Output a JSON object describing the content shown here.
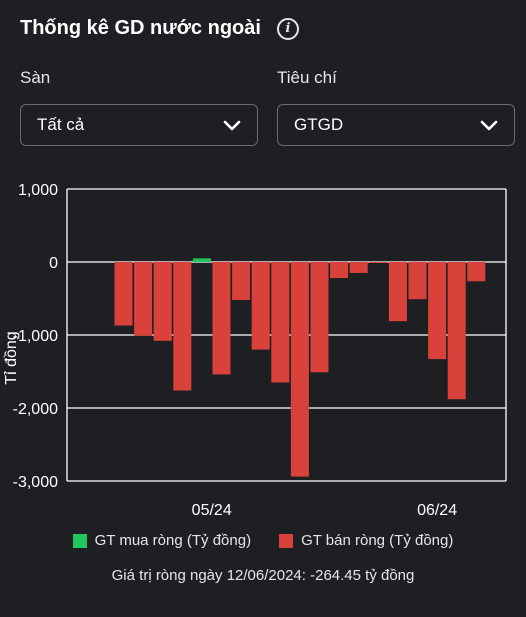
{
  "header": {
    "title": "Thống kê GD nước ngoài",
    "info_icon": "info-icon"
  },
  "filters": {
    "exchange": {
      "label": "Sàn",
      "value": "Tất cả"
    },
    "criteria": {
      "label": "Tiêu chí",
      "value": "GTGD"
    }
  },
  "colors": {
    "buy": "#22c55e",
    "sell": "#d9423a",
    "axis": "#ffffff",
    "bg": "#1e1f23"
  },
  "legend": {
    "buy_label": "GT mua ròng (Tỷ đồng)",
    "sell_label": "GT bán ròng (Tỷ đồng)"
  },
  "footer": {
    "net_value_text": "Giá trị ròng ngày 12/06/2024: -264.45 tỷ đồng"
  },
  "chart_data": {
    "type": "bar",
    "ylabel": "Tỉ đồng",
    "ylim": [
      -3000,
      1000
    ],
    "yticks": [
      1000,
      0,
      -1000,
      -2000,
      -3000
    ],
    "ytick_labels": [
      "1,000",
      "0",
      "-1,000",
      "-2,000",
      "-3,000"
    ],
    "xtick_labels": [
      {
        "label": "05/24",
        "index": 4.5
      },
      {
        "label": "06/24",
        "index": 16
      }
    ],
    "grid": true,
    "series": [
      {
        "name": "GT mua ròng (Tỷ đồng)",
        "color": "#22c55e"
      },
      {
        "name": "GT bán ròng (Tỷ đồng)",
        "color": "#d9423a"
      }
    ],
    "values": [
      -870,
      -1010,
      -1080,
      -1760,
      50,
      -1540,
      -520,
      -1200,
      -1650,
      -2940,
      -1510,
      -220,
      -150,
      -10,
      -810,
      -510,
      -1330,
      -1880,
      -264.45
    ]
  }
}
